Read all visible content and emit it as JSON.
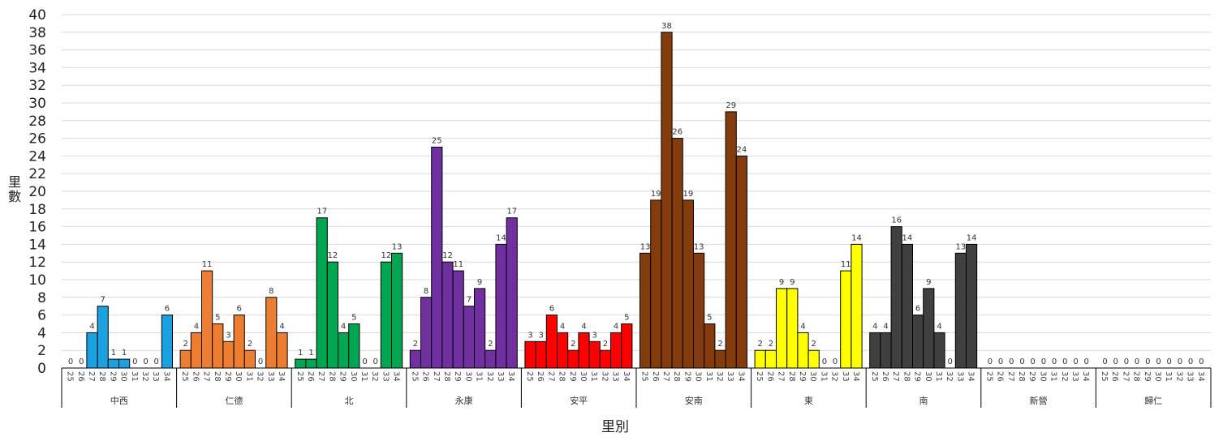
{
  "chart_data": {
    "type": "bar",
    "title": "",
    "xlabel": "里別",
    "ylabel": "里數",
    "ylim": [
      0,
      40
    ],
    "yticks": [
      0,
      2,
      4,
      6,
      8,
      10,
      12,
      14,
      16,
      18,
      20,
      22,
      24,
      26,
      28,
      30,
      32,
      34,
      36,
      38,
      40
    ],
    "grid": true,
    "legend": "none",
    "sub_categories": [
      "25",
      "26",
      "27",
      "28",
      "29",
      "30",
      "31",
      "32",
      "33",
      "34"
    ],
    "groups": [
      {
        "name": "中西",
        "color": "#1ba1e2",
        "values": [
          0,
          0,
          4,
          7,
          1,
          1,
          0,
          0,
          0,
          6
        ]
      },
      {
        "name": "仁德",
        "color": "#ed7d31",
        "values": [
          2,
          4,
          11,
          5,
          3,
          6,
          2,
          0,
          8,
          4
        ]
      },
      {
        "name": "北",
        "color": "#00a651",
        "values": [
          1,
          1,
          17,
          12,
          4,
          5,
          0,
          0,
          12,
          13
        ]
      },
      {
        "name": "永康",
        "color": "#7030a0",
        "values": [
          2,
          8,
          25,
          12,
          11,
          7,
          9,
          2,
          14,
          17
        ]
      },
      {
        "name": "安平",
        "color": "#ff0000",
        "values": [
          3,
          3,
          6,
          4,
          2,
          4,
          3,
          2,
          4,
          5
        ]
      },
      {
        "name": "安南",
        "color": "#843c0c",
        "values": [
          13,
          19,
          38,
          26,
          19,
          13,
          5,
          2,
          29,
          24
        ]
      },
      {
        "name": "東",
        "color": "#ffff00",
        "values": [
          2,
          2,
          9,
          9,
          4,
          2,
          0,
          0,
          11,
          14
        ]
      },
      {
        "name": "南",
        "color": "#404040",
        "values": [
          4,
          4,
          16,
          14,
          6,
          9,
          4,
          0,
          13,
          14
        ]
      },
      {
        "name": "新營",
        "color": "#808080",
        "values": [
          0,
          0,
          0,
          0,
          0,
          0,
          0,
          0,
          0,
          0
        ]
      },
      {
        "name": "歸仁",
        "color": "#808080",
        "values": [
          0,
          0,
          0,
          0,
          0,
          0,
          0,
          0,
          0,
          0
        ]
      }
    ]
  }
}
